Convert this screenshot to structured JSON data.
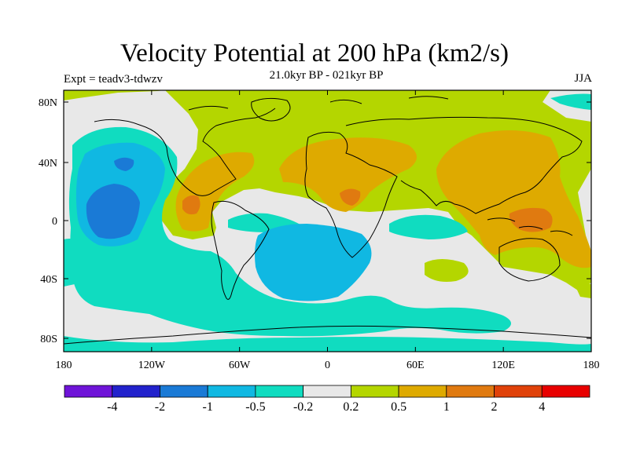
{
  "header": {
    "title": "Velocity Potential at 200 hPa (km2/s)",
    "subtitle": "21.0kyr BP - 021kyr BP",
    "left_label": "Expt = teadv3-tdwzv",
    "right_label": "JJA"
  },
  "axes": {
    "x_ticks": [
      "180",
      "120W",
      "60W",
      "0",
      "60E",
      "120E",
      "180"
    ],
    "y_ticks": [
      "80N",
      "40N",
      "0",
      "40S",
      "80S"
    ]
  },
  "colorbar": {
    "labels": [
      "-4",
      "-2",
      "-1",
      "-0.5",
      "-0.2",
      "0.2",
      "0.5",
      "1",
      "2",
      "4"
    ],
    "colors": [
      "#6f14d8",
      "#2222cc",
      "#1a7ad6",
      "#10b8e2",
      "#10dcc0",
      "#e8e8e8",
      "#b4d600",
      "#deaa00",
      "#e07a10",
      "#e0420a",
      "#e80000"
    ]
  },
  "map_colors": {
    "neutral": "#e8e8e8",
    "light_positive": "#b4d600",
    "positive": "#deaa00",
    "strong_positive": "#e07a10",
    "light_negative": "#10dcc0",
    "negative": "#10b8e2",
    "strong_negative": "#1a7ad6"
  }
}
